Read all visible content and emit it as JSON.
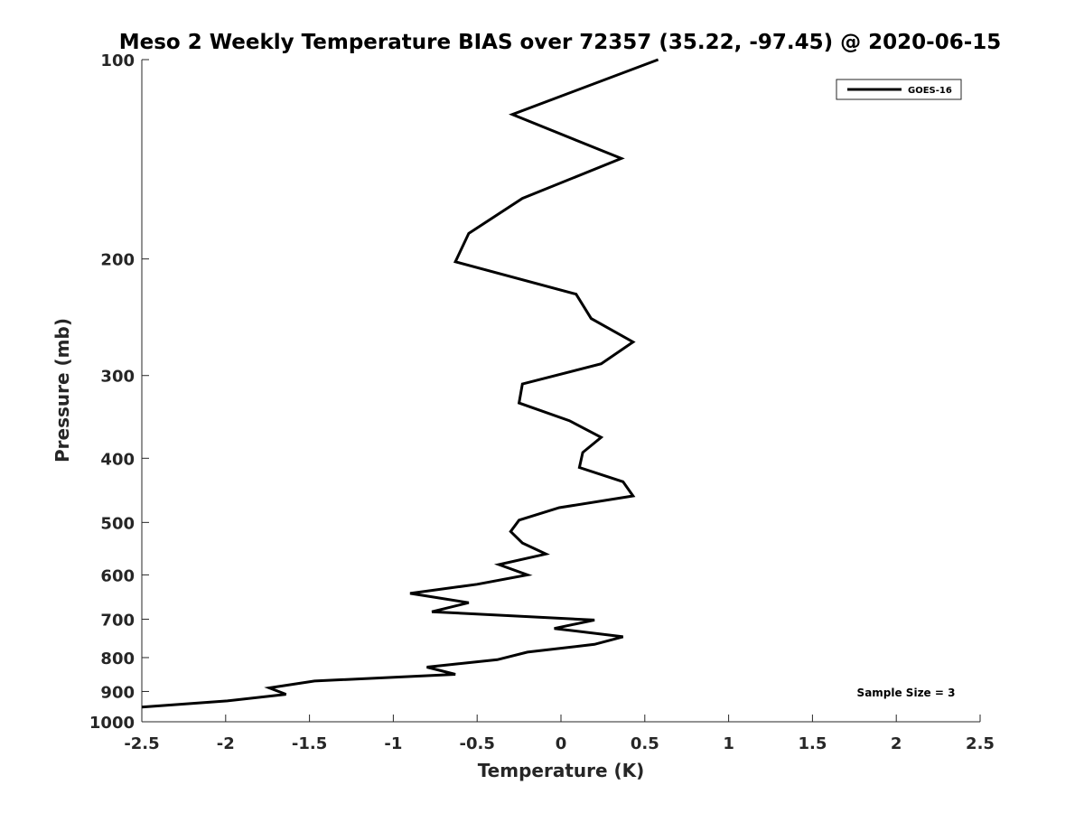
{
  "chart_data": {
    "type": "line",
    "title": "Meso 2 Weekly Temperature BIAS over 72357 (35.22, -97.45) @ 2020-06-15",
    "xlabel": "Temperature (K)",
    "ylabel": "Pressure (mb)",
    "xlim": [
      -2.5,
      2.5
    ],
    "ylim": [
      100,
      1000
    ],
    "y_scale": "log",
    "y_reversed": true,
    "x_ticks": [
      "-2.5",
      "-2",
      "-1.5",
      "-1",
      "-0.5",
      "0",
      "0.5",
      "1",
      "1.5",
      "2",
      "2.5"
    ],
    "y_ticks": [
      "100",
      "200",
      "300",
      "400",
      "500",
      "600",
      "700",
      "800",
      "900",
      "1000"
    ],
    "grid": false,
    "legend_position": "top-right",
    "annotation": "Sample Size = 3",
    "series": [
      {
        "name": "GOES-16",
        "color": "#000000",
        "points": [
          [
            0.58,
            100
          ],
          [
            -0.29,
            121
          ],
          [
            0.36,
            141
          ],
          [
            -0.23,
            162
          ],
          [
            -0.55,
            183
          ],
          [
            -0.63,
            202
          ],
          [
            0.09,
            226
          ],
          [
            0.18,
            246
          ],
          [
            0.43,
            267
          ],
          [
            0.24,
            288
          ],
          [
            -0.23,
            309
          ],
          [
            -0.25,
            330
          ],
          [
            0.05,
            351
          ],
          [
            0.24,
            372
          ],
          [
            0.13,
            392
          ],
          [
            0.11,
            413
          ],
          [
            0.37,
            434
          ],
          [
            0.43,
            456
          ],
          [
            -0.01,
            475
          ],
          [
            -0.25,
            496
          ],
          [
            -0.3,
            516
          ],
          [
            -0.23,
            537
          ],
          [
            -0.09,
            558
          ],
          [
            -0.37,
            579
          ],
          [
            -0.2,
            600
          ],
          [
            -0.5,
            620
          ],
          [
            -0.9,
            640
          ],
          [
            -0.55,
            661
          ],
          [
            -0.77,
            682
          ],
          [
            0.2,
            702
          ],
          [
            -0.04,
            723
          ],
          [
            0.37,
            744
          ],
          [
            0.2,
            764
          ],
          [
            -0.2,
            785
          ],
          [
            -0.38,
            806
          ],
          [
            -0.8,
            827
          ],
          [
            -0.63,
            848
          ],
          [
            -1.47,
            868
          ],
          [
            -1.74,
            889
          ],
          [
            -1.64,
            909
          ],
          [
            -1.99,
            930
          ],
          [
            -2.5,
            950
          ]
        ]
      }
    ]
  }
}
